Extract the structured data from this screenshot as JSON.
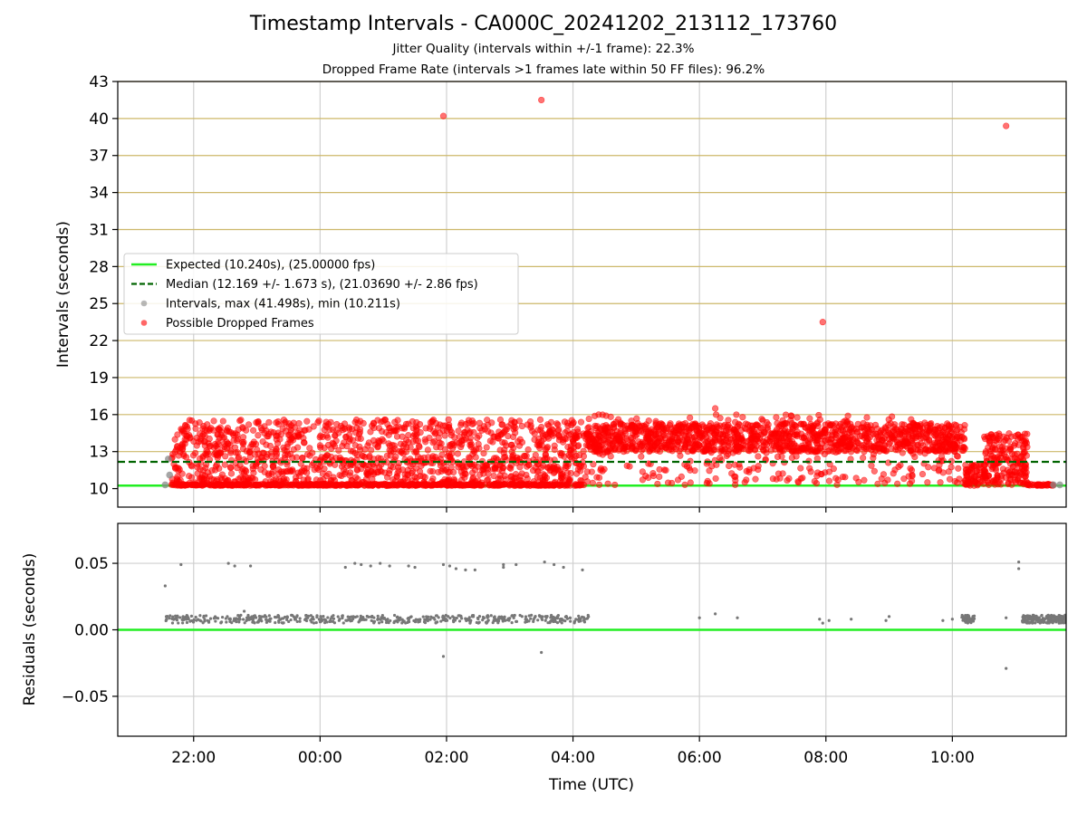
{
  "figure": {
    "title": "Timestamp Intervals - CA000C_20241202_213112_173760",
    "subtitle_1": "Jitter Quality (intervals within +/-1 frame): 22.3%",
    "subtitle_2": "Dropped Frame Rate (intervals >1 frames late within 50 FF files): 96.2%"
  },
  "chart_data": [
    {
      "type": "scatter",
      "panel": "top",
      "ylabel": "Intervals (seconds)",
      "ylim": [
        8.5,
        43
      ],
      "yticks": [
        "10",
        "13",
        "16",
        "19",
        "22",
        "25",
        "28",
        "31",
        "34",
        "37",
        "40",
        "43"
      ],
      "y_gridlines": [
        13,
        16,
        19,
        22,
        25,
        28,
        31,
        34,
        37,
        40,
        43
      ],
      "y_grid_color": "#cdb86a",
      "x_grid": true,
      "x_range_hours": [
        -3.2,
        11.8
      ],
      "xticks": [
        "22:00",
        "00:00",
        "02:00",
        "04:00",
        "06:00",
        "08:00",
        "10:00"
      ],
      "legend_position": "center-left",
      "expected_line": {
        "y": 10.24,
        "color": "#22ee22"
      },
      "median_line": {
        "y": 12.169,
        "color": "#006400"
      },
      "legend": [
        {
          "label": "Expected (10.240s), (25.00000 fps)",
          "kind": "solid-line",
          "color": "#22ee22"
        },
        {
          "label": "Median (12.169 +/- 1.673 s), (21.03690 +/- 2.86 fps)",
          "kind": "dashed-line",
          "color": "#006400"
        },
        {
          "label": "Intervals, max (41.498s), min (10.211s)",
          "kind": "marker",
          "color": "#888888"
        },
        {
          "label": "Possible Dropped Frames",
          "kind": "marker",
          "color": "#ff0000"
        }
      ],
      "gray_points": [
        [
          -2.45,
          10.3
        ],
        [
          -2.4,
          12.4
        ],
        [
          -2.38,
          11.1
        ],
        [
          11.6,
          10.3
        ],
        [
          11.7,
          10.3
        ]
      ],
      "dropped_outliers": [
        [
          1.95,
          40.2
        ],
        [
          3.5,
          41.5
        ],
        [
          7.95,
          23.5
        ],
        [
          10.85,
          39.4
        ],
        [
          6.25,
          16.5
        ]
      ],
      "dropped_clusters": [
        {
          "t0": -2.35,
          "t1": 4.2,
          "ymin": 10.25,
          "ymax": 15.6,
          "n": 1300
        },
        {
          "t0": 4.2,
          "t1": 10.2,
          "ymin": 13.0,
          "ymax": 15.3,
          "n": 1100
        },
        {
          "t0": 4.2,
          "t1": 10.2,
          "ymin": 10.3,
          "ymax": 16.0,
          "n": 350
        },
        {
          "t0": 10.2,
          "t1": 10.5,
          "ymin": 10.2,
          "ymax": 12.0,
          "n": 60
        },
        {
          "t0": 10.5,
          "t1": 11.2,
          "ymin": 10.3,
          "ymax": 14.5,
          "n": 200
        }
      ],
      "dropped_baseline": [
        {
          "t0": -2.35,
          "t1": 4.2,
          "y": 10.3,
          "n": 450
        },
        {
          "t0": 11.15,
          "t1": 11.6,
          "y": 10.3,
          "n": 40
        }
      ]
    },
    {
      "type": "scatter",
      "panel": "bottom",
      "xlabel": "Time (UTC)",
      "ylabel": "Residuals (seconds)",
      "ylim": [
        -0.08,
        0.08
      ],
      "yticks": [
        "−0.05",
        "0.00",
        "0.05"
      ],
      "zero_line": {
        "y": 0.0,
        "color": "#22ee22"
      },
      "point_color": "#777777",
      "dense_bands": [
        {
          "t0": -2.45,
          "t1": 4.25,
          "ymin": 0.005,
          "ymax": 0.011,
          "n": 500
        },
        {
          "t0": 10.15,
          "t1": 10.35,
          "ymin": 0.005,
          "ymax": 0.011,
          "n": 50
        },
        {
          "t0": 11.1,
          "t1": 11.8,
          "ymin": 0.005,
          "ymax": 0.011,
          "n": 160
        }
      ],
      "sparse_points": [
        [
          -2.45,
          0.033
        ],
        [
          -2.2,
          0.049
        ],
        [
          -1.45,
          0.05
        ],
        [
          -1.35,
          0.048
        ],
        [
          -1.1,
          0.048
        ],
        [
          0.4,
          0.047
        ],
        [
          0.55,
          0.05
        ],
        [
          0.65,
          0.049
        ],
        [
          0.8,
          0.048
        ],
        [
          0.95,
          0.05
        ],
        [
          1.1,
          0.048
        ],
        [
          1.4,
          0.048
        ],
        [
          1.5,
          0.047
        ],
        [
          1.95,
          0.049
        ],
        [
          2.05,
          0.048
        ],
        [
          2.15,
          0.046
        ],
        [
          2.3,
          0.045
        ],
        [
          2.45,
          0.045
        ],
        [
          2.9,
          0.049
        ],
        [
          2.9,
          0.047
        ],
        [
          3.1,
          0.049
        ],
        [
          3.55,
          0.051
        ],
        [
          3.7,
          0.049
        ],
        [
          3.85,
          0.047
        ],
        [
          4.15,
          0.045
        ],
        [
          1.95,
          -0.02
        ],
        [
          3.5,
          -0.017
        ],
        [
          -1.2,
          0.014
        ],
        [
          -0.95,
          0.01
        ],
        [
          -0.4,
          0.009
        ],
        [
          6.0,
          0.009
        ],
        [
          6.25,
          0.012
        ],
        [
          6.6,
          0.009
        ],
        [
          7.9,
          0.008
        ],
        [
          7.95,
          0.005
        ],
        [
          8.05,
          0.007
        ],
        [
          8.4,
          0.008
        ],
        [
          9.0,
          0.01
        ],
        [
          8.95,
          0.007
        ],
        [
          9.85,
          0.007
        ],
        [
          10.0,
          0.008
        ],
        [
          10.85,
          0.009
        ],
        [
          10.85,
          -0.029
        ],
        [
          11.05,
          0.051
        ],
        [
          11.05,
          0.046
        ]
      ]
    }
  ]
}
